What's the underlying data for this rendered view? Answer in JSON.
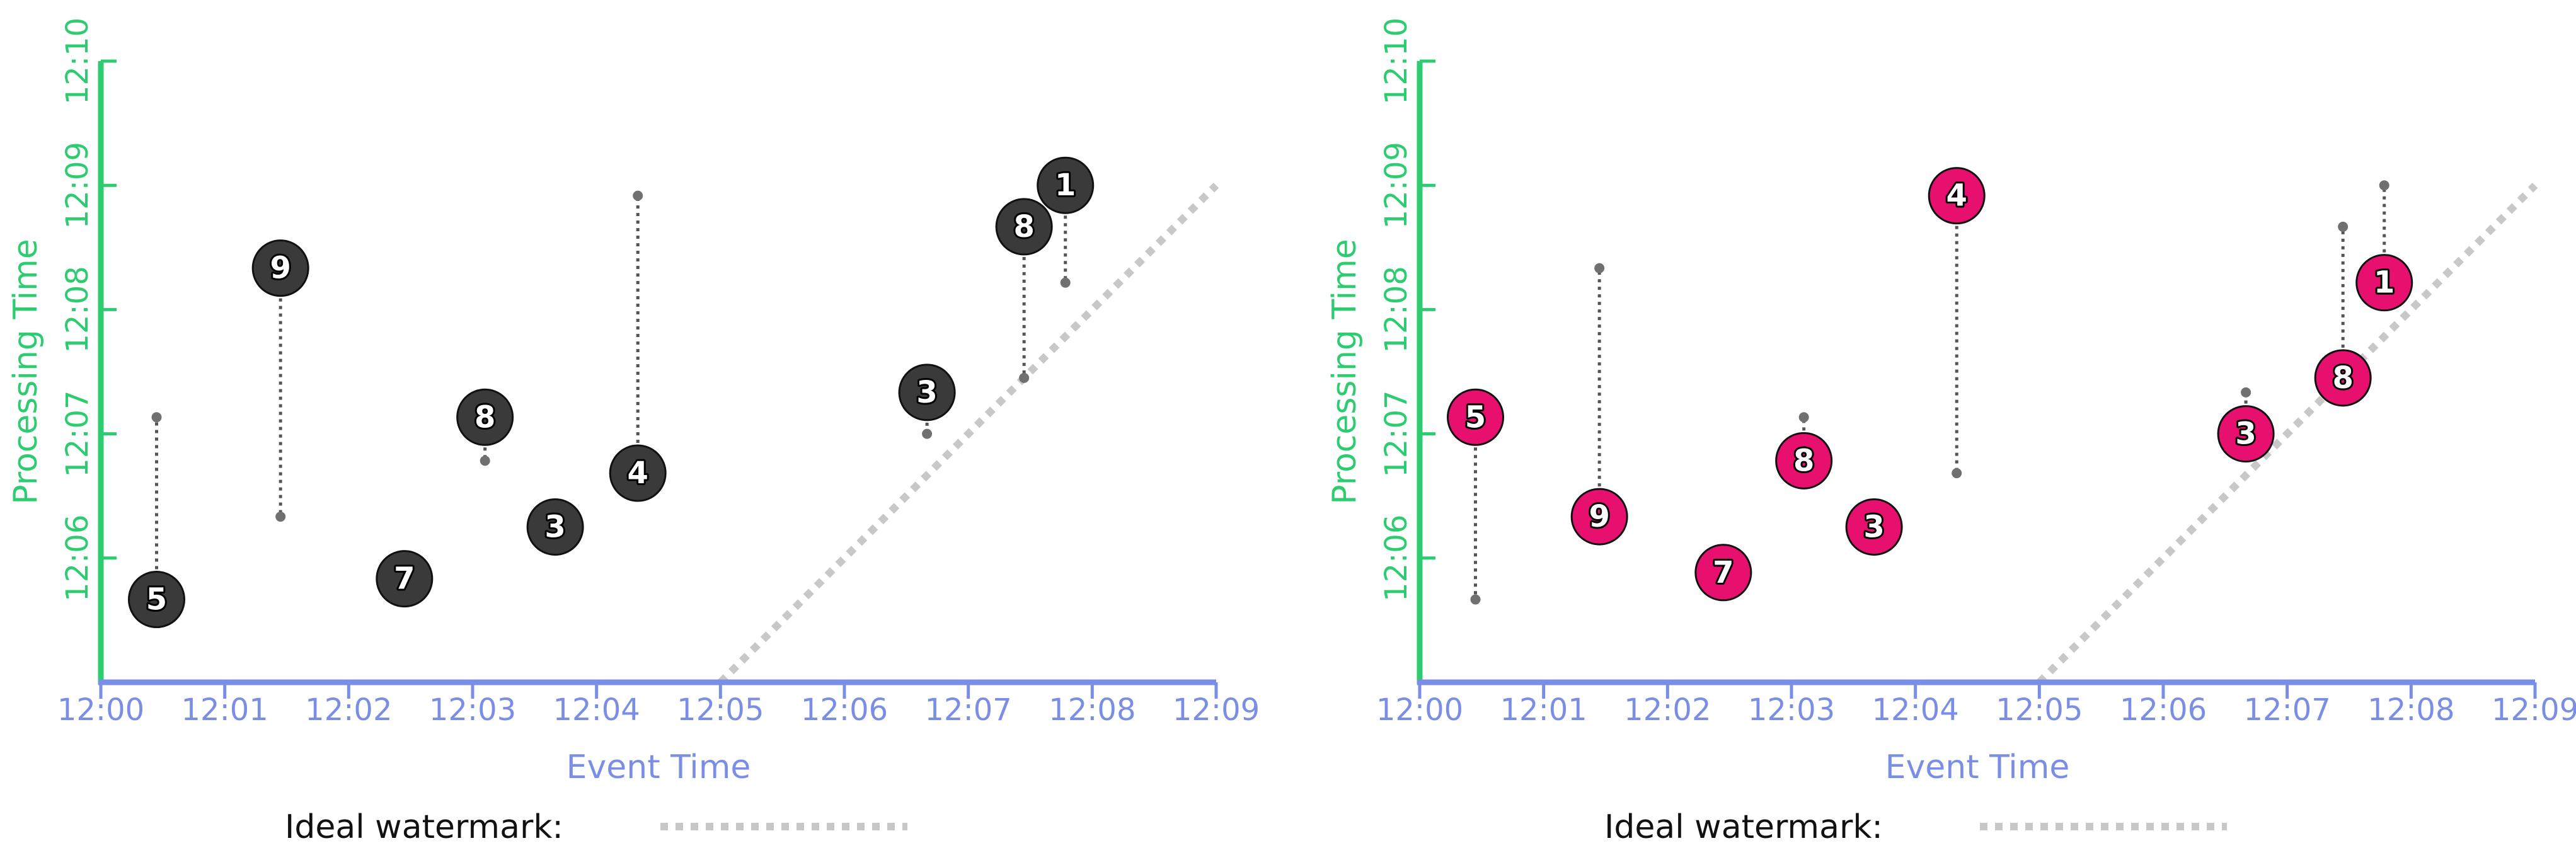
{
  "legend_label": "Ideal watermark:",
  "chart_data": [
    {
      "type": "scatter",
      "xlabel": "Event Time",
      "ylabel": "Processing Time",
      "x_ticks": [
        "12:00",
        "12:01",
        "12:02",
        "12:03",
        "12:04",
        "12:05",
        "12:06",
        "12:07",
        "12:08",
        "12:09"
      ],
      "y_ticks": [
        "12:06",
        "12:07",
        "12:08",
        "12:09",
        "12:10"
      ],
      "xlim": [
        "12:00",
        "12:09"
      ],
      "ylim": [
        "12:05",
        "12:10"
      ],
      "marker_color": "#3a3a3a",
      "points": [
        {
          "label": "5",
          "event_time": "12:00:27",
          "circle_at": "12:05:40",
          "dot_at": "12:07:08"
        },
        {
          "label": "9",
          "event_time": "12:01:27",
          "circle_at": "12:08:20",
          "dot_at": "12:06:20"
        },
        {
          "label": "7",
          "event_time": "12:02:27",
          "circle_at": "12:05:50",
          "dot_at": "12:05:53"
        },
        {
          "label": "8",
          "event_time": "12:03:06",
          "circle_at": "12:07:08",
          "dot_at": "12:06:47"
        },
        {
          "label": "3",
          "event_time": "12:03:40",
          "circle_at": "12:06:15",
          "dot_at": null
        },
        {
          "label": "4",
          "event_time": "12:04:20",
          "circle_at": "12:06:41",
          "dot_at": "12:08:55"
        },
        {
          "label": "3",
          "event_time": "12:06:40",
          "circle_at": "12:07:20",
          "dot_at": "12:07:00"
        },
        {
          "label": "8",
          "event_time": "12:07:27",
          "circle_at": "12:08:40",
          "dot_at": "12:07:27"
        },
        {
          "label": "1",
          "event_time": "12:07:47",
          "circle_at": "12:09:00",
          "dot_at": "12:08:13"
        }
      ],
      "watermark": {
        "from": [
          "12:05",
          "12:05"
        ],
        "to": [
          "12:09",
          "12:09"
        ]
      }
    },
    {
      "type": "scatter",
      "xlabel": "Event Time",
      "ylabel": "Processing Time",
      "x_ticks": [
        "12:00",
        "12:01",
        "12:02",
        "12:03",
        "12:04",
        "12:05",
        "12:06",
        "12:07",
        "12:08",
        "12:09"
      ],
      "y_ticks": [
        "12:06",
        "12:07",
        "12:08",
        "12:09",
        "12:10"
      ],
      "xlim": [
        "12:00",
        "12:09"
      ],
      "ylim": [
        "12:05",
        "12:10"
      ],
      "marker_color": "#e8106e",
      "points": [
        {
          "label": "5",
          "event_time": "12:00:27",
          "circle_at": "12:07:08",
          "dot_at": "12:05:40"
        },
        {
          "label": "9",
          "event_time": "12:01:27",
          "circle_at": "12:06:20",
          "dot_at": "12:08:20"
        },
        {
          "label": "7",
          "event_time": "12:02:27",
          "circle_at": "12:05:53",
          "dot_at": "12:05:50"
        },
        {
          "label": "8",
          "event_time": "12:03:06",
          "circle_at": "12:06:47",
          "dot_at": "12:07:08"
        },
        {
          "label": "3",
          "event_time": "12:03:40",
          "circle_at": "12:06:15",
          "dot_at": null
        },
        {
          "label": "4",
          "event_time": "12:04:20",
          "circle_at": "12:08:55",
          "dot_at": "12:06:41"
        },
        {
          "label": "3",
          "event_time": "12:06:40",
          "circle_at": "12:07:00",
          "dot_at": "12:07:20"
        },
        {
          "label": "8",
          "event_time": "12:07:27",
          "circle_at": "12:07:27",
          "dot_at": "12:08:40"
        },
        {
          "label": "1",
          "event_time": "12:07:47",
          "circle_at": "12:08:13",
          "dot_at": "12:09:00"
        }
      ],
      "watermark": {
        "from": [
          "12:05",
          "12:05"
        ],
        "to": [
          "12:09",
          "12:09"
        ]
      }
    }
  ]
}
